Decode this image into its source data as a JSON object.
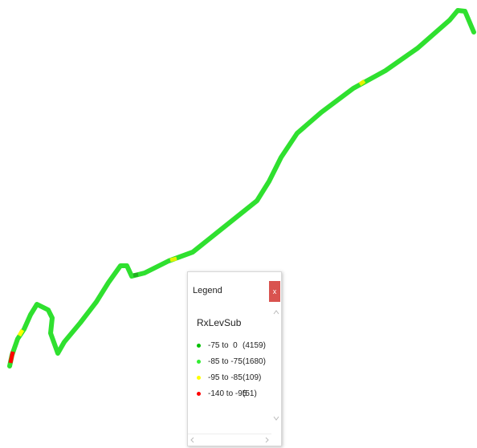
{
  "legend": {
    "title": "Legend",
    "close": "x",
    "subtitle": "RxLevSub",
    "items": [
      {
        "label": "-75 to  0",
        "count": "(4159)",
        "color": "#00c000"
      },
      {
        "label": "-85 to -75",
        "count": "(1680)",
        "color": "#33ee33"
      },
      {
        "label": "-95 to -85",
        "count": "(109)",
        "color": "#ffff00"
      },
      {
        "label": "-140 to -95",
        "count": "(51)",
        "color": "#ff0000"
      }
    ]
  }
}
